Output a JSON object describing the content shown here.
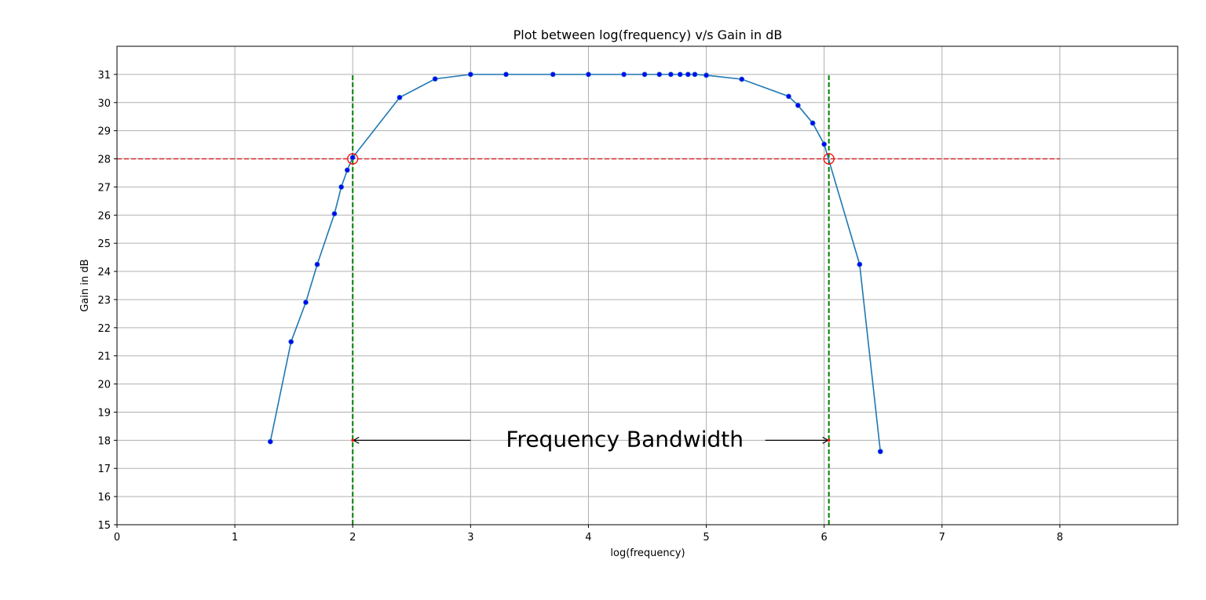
{
  "chart_data": {
    "type": "line",
    "title": "Plot between log(frequency) v/s Gain in dB",
    "xlabel": "log(frequency)",
    "ylabel": "Gain in dB",
    "xlim": [
      0,
      9
    ],
    "ylim": [
      15,
      32
    ],
    "xticks": [
      0,
      1,
      2,
      3,
      4,
      5,
      6,
      7,
      8
    ],
    "yticks": [
      15,
      16,
      17,
      18,
      19,
      20,
      21,
      22,
      23,
      24,
      25,
      26,
      27,
      28,
      29,
      30,
      31
    ],
    "grid": true,
    "series": [
      {
        "color": "#1f77b4",
        "marker_color": "#0000ff",
        "x": [
          1.301,
          1.477,
          1.602,
          1.699,
          1.845,
          1.903,
          1.954,
          2.0,
          2.398,
          2.699,
          3.0,
          3.301,
          3.699,
          4.0,
          4.301,
          4.477,
          4.602,
          4.699,
          4.778,
          4.845,
          4.903,
          5.0,
          5.301,
          5.699,
          5.778,
          5.903,
          6.0,
          6.301,
          6.477
        ],
        "y": [
          17.95,
          21.5,
          22.9,
          24.25,
          26.05,
          27.0,
          27.6,
          28.05,
          30.18,
          30.84,
          31.0,
          31.0,
          31.0,
          31.0,
          31.0,
          31.0,
          31.0,
          31.0,
          31.0,
          31.0,
          31.0,
          30.97,
          30.83,
          30.22,
          29.9,
          29.27,
          28.52,
          24.25,
          17.6
        ]
      }
    ],
    "reference_lines": {
      "horizontal": {
        "y": 28,
        "x_range": [
          0,
          8
        ],
        "color": "#d62728",
        "style": "dashed"
      },
      "vertical": [
        {
          "x": 2.0,
          "y_range": [
            15,
            31
          ],
          "color": "#008000",
          "style": "dashed"
        },
        {
          "x": 6.04,
          "y_range": [
            15,
            31
          ],
          "color": "#008000",
          "style": "dashed"
        }
      ]
    },
    "cutoff_points": [
      {
        "x": 2.0,
        "y": 28
      },
      {
        "x": 6.04,
        "y": 28
      }
    ],
    "cutoff_marker_color": "#ff0000",
    "annotation": {
      "text": "Frequency Bandwidth",
      "text_x": 3.3,
      "y": 18,
      "arrow_left": {
        "from_x": 3.0,
        "to_x": 2.0
      },
      "arrow_right": {
        "from_x": 5.5,
        "to_x": 6.04
      }
    }
  }
}
